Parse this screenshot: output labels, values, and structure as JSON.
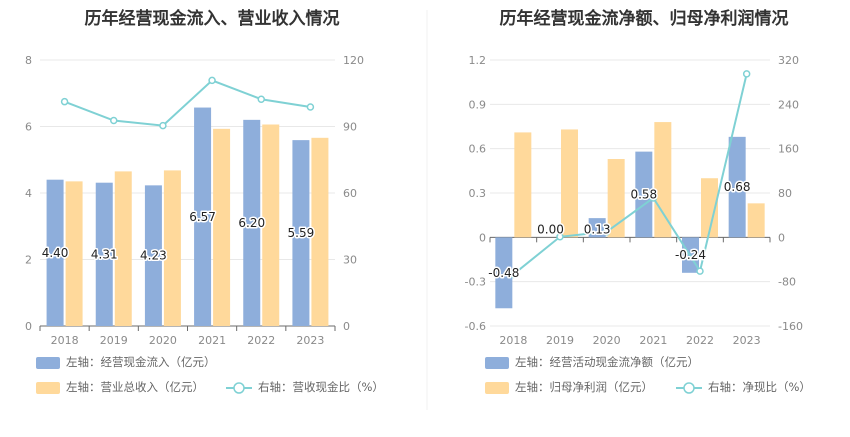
{
  "chart_data": [
    {
      "type": "bar",
      "title": "历年经营现金流入、营业收入情况",
      "categories": [
        "2018",
        "2019",
        "2020",
        "2021",
        "2022",
        "2023"
      ],
      "left_axis": {
        "ylim": [
          0,
          8
        ],
        "ticks": [
          "0",
          "2",
          "4",
          "6",
          "8"
        ]
      },
      "right_axis": {
        "ylim": [
          0,
          120
        ],
        "ticks": [
          "0",
          "30",
          "60",
          "90",
          "120"
        ]
      },
      "series": [
        {
          "name": "左轴：经营现金流入（亿元）",
          "type": "bar",
          "axis": "left",
          "color": "#8eaedb",
          "values": [
            4.4,
            4.31,
            4.23,
            6.57,
            6.2,
            5.59
          ],
          "labels": [
            "4.40",
            "4.31",
            "4.23",
            "6.57",
            "6.20",
            "5.59"
          ]
        },
        {
          "name": "左轴：营业总收入（亿元）",
          "type": "bar",
          "axis": "left",
          "color": "#ffd99b",
          "values": [
            4.35,
            4.65,
            4.68,
            5.93,
            6.06,
            5.66
          ]
        },
        {
          "name": "右轴：营收现金比（%）",
          "type": "line",
          "axis": "right",
          "color": "#7fd1d4",
          "values": [
            101.2,
            92.7,
            90.4,
            110.8,
            102.3,
            98.8
          ]
        }
      ],
      "legend_position": "bottom"
    },
    {
      "type": "bar",
      "title": "历年经营现金流净额、归母净利润情况",
      "categories": [
        "2018",
        "2019",
        "2020",
        "2021",
        "2022",
        "2023"
      ],
      "left_axis": {
        "ylim": [
          -0.6,
          1.2
        ],
        "ticks": [
          "-0.6",
          "-0.3",
          "0",
          "0.3",
          "0.6",
          "0.9",
          "1.2"
        ]
      },
      "right_axis": {
        "ylim": [
          -160,
          320
        ],
        "ticks": [
          "-160",
          "-80",
          "0",
          "80",
          "160",
          "240",
          "320"
        ]
      },
      "series": [
        {
          "name": "左轴：经营活动现金流净额（亿元）",
          "type": "bar",
          "axis": "left",
          "color": "#8eaedb",
          "values": [
            -0.48,
            0.0,
            0.13,
            0.58,
            -0.24,
            0.68
          ],
          "labels": [
            "-0.48",
            "0.00",
            "0.13",
            "0.58",
            "-0.24",
            "0.68"
          ]
        },
        {
          "name": "左轴：归母净利润（亿元）",
          "type": "bar",
          "axis": "left",
          "color": "#ffd99b",
          "values": [
            0.71,
            0.73,
            0.53,
            0.78,
            0.4,
            0.23
          ]
        },
        {
          "name": "右轴：净现比（%）",
          "type": "line",
          "axis": "right",
          "color": "#7fd1d4",
          "values": [
            -67,
            1,
            10,
            71,
            -61,
            295
          ]
        }
      ],
      "legend_position": "bottom"
    }
  ]
}
